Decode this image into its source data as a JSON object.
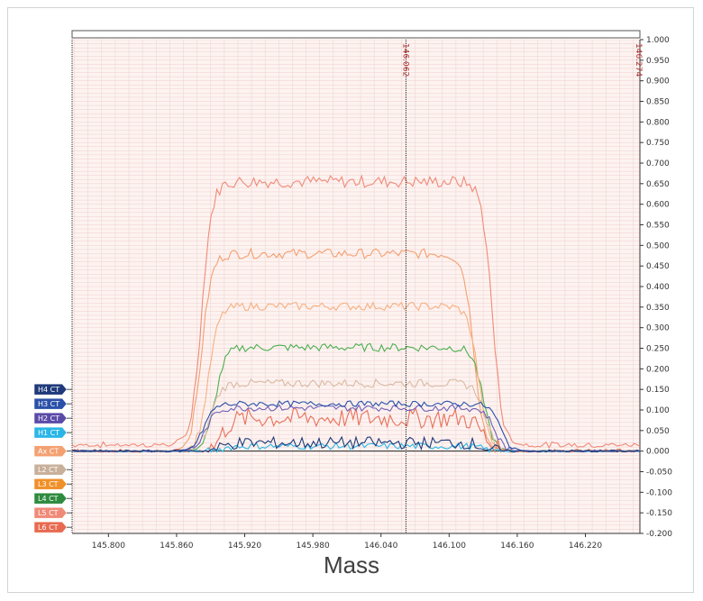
{
  "chart_data": {
    "type": "line",
    "title": "",
    "xlabel": "Mass",
    "ylabel": "",
    "xlim": [
      145.768,
      146.268
    ],
    "ylim": [
      -0.2,
      1.0
    ],
    "x_ticks": [
      "145.800",
      "145.860",
      "145.920",
      "145.980",
      "146.040",
      "146.100",
      "146.160",
      "146.220"
    ],
    "y_ticks": [
      "1.000",
      "0.950",
      "0.900",
      "0.850",
      "0.800",
      "0.750",
      "0.700",
      "0.650",
      "0.600",
      "0.550",
      "0.500",
      "0.450",
      "0.400",
      "0.350",
      "0.300",
      "0.250",
      "0.200",
      "0.150",
      "0.100",
      "0.050",
      "0.000",
      "-0.050",
      "-0.100",
      "-0.150",
      "-0.200"
    ],
    "cursor_label": "146.062",
    "range_end_label": "146.274",
    "cursor_x": 146.062,
    "grid": true,
    "series": [
      {
        "name": "L6 CT",
        "color": "#f08a78",
        "plateau": 0.655,
        "noise": 0.015,
        "start": 145.862,
        "end": 146.158,
        "base": 0.015,
        "baseNoise": 0.01
      },
      {
        "name": "L5 CT",
        "color": "#f4a070",
        "plateau": 0.48,
        "noise": 0.012,
        "start": 145.862,
        "end": 146.142,
        "base": 0.0,
        "baseNoise": 0.0
      },
      {
        "name": "L4 CT",
        "color": "#4caf50",
        "plateau": 0.252,
        "noise": 0.01,
        "start": 145.874,
        "end": 146.15,
        "base": 0.0,
        "baseNoise": 0.0
      },
      {
        "name": "L3 CT",
        "color": "#f7b080",
        "plateau": 0.352,
        "noise": 0.01,
        "start": 145.868,
        "end": 146.146,
        "base": 0.0,
        "baseNoise": 0.0
      },
      {
        "name": "L2 CT",
        "color": "#d9bba3",
        "plateau": 0.165,
        "noise": 0.01,
        "start": 145.87,
        "end": 146.152,
        "base": 0.0,
        "baseNoise": 0.0
      },
      {
        "name": "Ax CT",
        "color": "#e8705a",
        "plateau": 0.08,
        "noise": 0.025,
        "start": 145.88,
        "end": 146.15,
        "base": 0.0,
        "baseNoise": 0.0
      },
      {
        "name": "H1 CT",
        "color": "#29b6e6",
        "plateau": 0.012,
        "noise": 0.008,
        "start": 145.88,
        "end": 146.15,
        "base": 0.0,
        "baseNoise": 0.0
      },
      {
        "name": "H2 CT",
        "color": "#7060b8",
        "plateau": 0.105,
        "noise": 0.008,
        "start": 145.866,
        "end": 146.16,
        "base": 0.0,
        "baseNoise": 0.0
      },
      {
        "name": "H3 CT",
        "color": "#2a50a8",
        "plateau": 0.115,
        "noise": 0.007,
        "start": 145.864,
        "end": 146.165,
        "base": 0.0,
        "baseNoise": 0.0
      },
      {
        "name": "H4 CT",
        "color": "#1f3a7a",
        "plateau": 0.02,
        "noise": 0.015,
        "start": 145.88,
        "end": 146.15,
        "base": 0.0,
        "baseNoise": 0.0
      }
    ],
    "badges": [
      {
        "label": "H4 CT",
        "color": "#1f3a7a",
        "value": 0.15
      },
      {
        "label": "H3 CT",
        "color": "#2a50a8",
        "value": 0.115
      },
      {
        "label": "H2 CT",
        "color": "#5a4aa8",
        "value": 0.08
      },
      {
        "label": "H1 CT",
        "color": "#29b6e6",
        "value": 0.045
      },
      {
        "label": "Ax CT",
        "color": "#f4a070",
        "value": 0.0
      },
      {
        "label": "L2 CT",
        "color": "#c8b09a",
        "value": -0.045
      },
      {
        "label": "L3 CT",
        "color": "#f0902a",
        "value": -0.08
      },
      {
        "label": "L4 CT",
        "color": "#2e8b3e",
        "value": -0.115
      },
      {
        "label": "L5 CT",
        "color": "#f08a78",
        "value": -0.15
      },
      {
        "label": "L6 CT",
        "color": "#e86a50",
        "value": -0.185
      }
    ]
  }
}
